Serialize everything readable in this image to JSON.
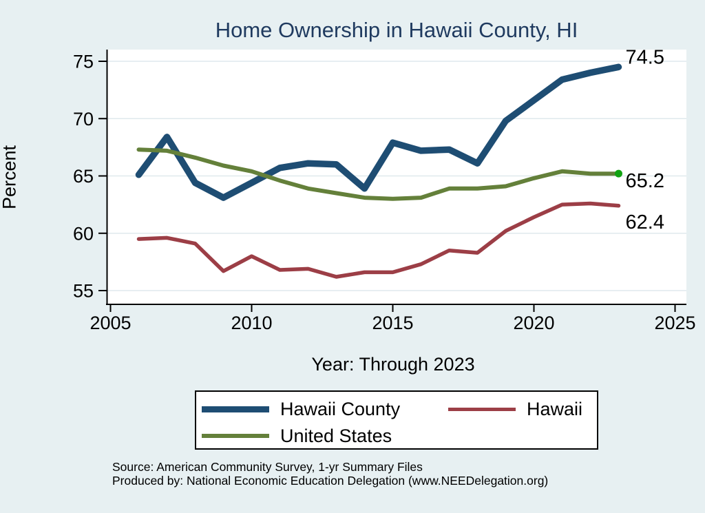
{
  "title": "Home Ownership in Hawaii County, HI",
  "axes": {
    "y_label": "Percent",
    "x_label": "Year: Through 2023"
  },
  "end_labels": [
    "74.5",
    "65.2",
    "62.4"
  ],
  "legend": {
    "items": [
      {
        "label": "Hawaii County",
        "color": "#1e4d73",
        "thickness": 9
      },
      {
        "label": "Hawaii",
        "color": "#9c3e46",
        "thickness": 5
      },
      {
        "label": "United States",
        "color": "#64803a",
        "thickness": 6
      }
    ]
  },
  "footer": {
    "line1": "Source: American Community Survey, 1-yr Summary Files",
    "line2": "Produced by: National Economic Education Delegation (www.NEEDelegation.org)"
  },
  "colors": {
    "background": "#e7f0f2",
    "plot_background": "#ffffff",
    "gridline": "#dfe9ed",
    "axis": "#000000",
    "title": "#1f3a5f",
    "end_dot": "#11a211"
  },
  "chart_data": {
    "type": "line",
    "title": "Home Ownership in Hawaii County, HI",
    "xlabel": "Year: Through 2023",
    "ylabel": "Percent",
    "x": [
      2006,
      2007,
      2008,
      2009,
      2010,
      2011,
      2012,
      2013,
      2014,
      2015,
      2016,
      2017,
      2018,
      2019,
      2020,
      2021,
      2022,
      2023
    ],
    "series": [
      {
        "name": "Hawaii County",
        "color": "#1e4d73",
        "stroke_width": 9.5,
        "end_label": "74.5",
        "end_dot": false,
        "values": [
          65.1,
          68.4,
          64.4,
          63.1,
          64.4,
          65.7,
          66.1,
          66.0,
          63.9,
          67.9,
          67.2,
          67.3,
          66.1,
          69.8,
          71.6,
          73.4,
          74.0,
          74.5
        ]
      },
      {
        "name": "Hawaii",
        "color": "#9c3e46",
        "stroke_width": 5.5,
        "end_label": "62.4",
        "end_dot": false,
        "values": [
          59.5,
          59.6,
          59.1,
          56.7,
          58.0,
          56.8,
          56.9,
          56.2,
          56.6,
          56.6,
          57.3,
          58.5,
          58.3,
          60.2,
          61.4,
          62.5,
          62.6,
          62.4
        ]
      },
      {
        "name": "United States",
        "color": "#64803a",
        "stroke_width": 6,
        "end_label": "65.2",
        "end_dot": true,
        "values": [
          67.3,
          67.2,
          66.6,
          65.9,
          65.4,
          64.6,
          63.9,
          63.5,
          63.1,
          63.0,
          63.1,
          63.9,
          63.9,
          64.1,
          64.8,
          65.4,
          65.2,
          65.2
        ]
      }
    ],
    "xticks": [
      2005,
      2010,
      2015,
      2020,
      2025
    ],
    "yticks": [
      55,
      60,
      65,
      70,
      75
    ],
    "xlim": [
      2005,
      2025
    ],
    "ylim": [
      55,
      75
    ],
    "grid": "horizontal",
    "legend_position": "bottom"
  }
}
